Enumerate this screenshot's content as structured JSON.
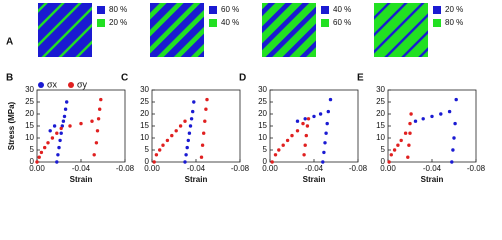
{
  "panel_a": {
    "label": "A",
    "colors": [
      "#1a1ad2",
      "#22e022"
    ],
    "panels": [
      {
        "values": [
          80,
          20
        ],
        "value_labels": [
          "80 %",
          "20 %"
        ]
      },
      {
        "values": [
          60,
          40
        ],
        "value_labels": [
          "60 %",
          "40 %"
        ]
      },
      {
        "values": [
          40,
          60
        ],
        "value_labels": [
          "40 %",
          "60 %"
        ]
      },
      {
        "values": [
          20,
          80
        ],
        "value_labels": [
          "20 %",
          "80 %"
        ]
      }
    ]
  },
  "chart_data": [
    {
      "type": "scatter",
      "label": "B",
      "xlabel": "Strain",
      "ylabel": "Stress (MPa)",
      "xlim": [
        0,
        -0.08
      ],
      "ylim": [
        0,
        30
      ],
      "xticks": [
        {
          "value": 0,
          "label": "0.00"
        },
        -0.04,
        -0.08
      ],
      "yticks": [
        0,
        5,
        10,
        15,
        20,
        25,
        30
      ],
      "series": [
        {
          "name": "σx",
          "color": "#1a1ad2",
          "x": [
            -0.018,
            -0.019,
            -0.02,
            -0.021,
            -0.022,
            -0.023,
            -0.024,
            -0.025,
            -0.026,
            -0.027,
            -0.012,
            -0.016
          ],
          "y": [
            0,
            3,
            6,
            9,
            12,
            15,
            17,
            19,
            22,
            25,
            13,
            15
          ]
        },
        {
          "name": "σy",
          "color": "#e02020",
          "x": [
            0,
            -0.002,
            -0.004,
            -0.007,
            -0.01,
            -0.014,
            -0.018,
            -0.022,
            -0.03,
            -0.04,
            -0.05,
            -0.052,
            -0.054,
            -0.055,
            -0.056,
            -0.057,
            -0.058
          ],
          "y": [
            0,
            2,
            4,
            6,
            8,
            10,
            12,
            14,
            15,
            16,
            17,
            3,
            8,
            13,
            18,
            22,
            26
          ]
        }
      ]
    },
    {
      "type": "scatter",
      "label": "C",
      "xlabel": "Strain",
      "xlim": [
        0,
        -0.08
      ],
      "ylim": [
        0,
        30
      ],
      "xticks": [
        {
          "value": 0,
          "label": "0.00"
        },
        -0.04,
        -0.08
      ],
      "yticks": [
        0,
        5,
        10,
        15,
        20,
        25,
        30
      ],
      "series": [
        {
          "color": "#1a1ad2",
          "x": [
            -0.03,
            -0.031,
            -0.032,
            -0.033,
            -0.034,
            -0.035,
            -0.036,
            -0.037,
            -0.038
          ],
          "y": [
            0,
            3,
            6,
            9,
            12,
            15,
            18,
            21,
            25
          ]
        },
        {
          "color": "#e02020",
          "x": [
            -0.002,
            -0.004,
            -0.007,
            -0.01,
            -0.014,
            -0.018,
            -0.022,
            -0.026,
            -0.03,
            -0.045,
            -0.046,
            -0.047,
            -0.048,
            -0.049,
            -0.05
          ],
          "y": [
            0,
            3,
            5,
            7,
            9,
            11,
            13,
            15,
            17,
            2,
            7,
            12,
            17,
            22,
            26
          ]
        }
      ]
    },
    {
      "type": "scatter",
      "label": "D",
      "xlabel": "Strain",
      "xlim": [
        0,
        -0.08
      ],
      "ylim": [
        0,
        30
      ],
      "xticks": [
        {
          "value": 0,
          "label": "0.00"
        },
        -0.04,
        -0.08
      ],
      "yticks": [
        0,
        5,
        10,
        15,
        20,
        25,
        30
      ],
      "series": [
        {
          "color": "#1a1ad2",
          "x": [
            -0.025,
            -0.032,
            -0.04,
            -0.046,
            -0.048,
            -0.049,
            -0.05,
            -0.051,
            -0.052,
            -0.053,
            -0.055
          ],
          "y": [
            17,
            18,
            19,
            20,
            0,
            4,
            8,
            12,
            16,
            21,
            26
          ]
        },
        {
          "color": "#e02020",
          "x": [
            -0.002,
            -0.005,
            -0.008,
            -0.012,
            -0.016,
            -0.02,
            -0.025,
            -0.03,
            -0.031,
            -0.032,
            -0.033,
            -0.034,
            -0.035
          ],
          "y": [
            0,
            3,
            5,
            7,
            9,
            11,
            13,
            16,
            3,
            7,
            11,
            15,
            18
          ]
        }
      ]
    },
    {
      "type": "scatter",
      "label": "E",
      "xlabel": "Strain",
      "xlim": [
        0,
        -0.08
      ],
      "ylim": [
        0,
        30
      ],
      "xticks": [
        {
          "value": 0,
          "label": "0.00"
        },
        -0.04,
        -0.08
      ],
      "yticks": [
        0,
        5,
        10,
        15,
        20,
        25,
        30
      ],
      "series": [
        {
          "color": "#1a1ad2",
          "x": [
            -0.025,
            -0.032,
            -0.04,
            -0.048,
            -0.056,
            -0.058,
            -0.059,
            -0.06,
            -0.061,
            -0.062
          ],
          "y": [
            17,
            18,
            19,
            20,
            21,
            0,
            5,
            10,
            16,
            26
          ]
        },
        {
          "color": "#e02020",
          "x": [
            -0.001,
            -0.003,
            -0.006,
            -0.009,
            -0.012,
            -0.016,
            -0.02,
            -0.018,
            -0.019,
            -0.02,
            -0.021
          ],
          "y": [
            0,
            3,
            5,
            7,
            9,
            12,
            16,
            2,
            7,
            12,
            20
          ]
        }
      ]
    }
  ]
}
